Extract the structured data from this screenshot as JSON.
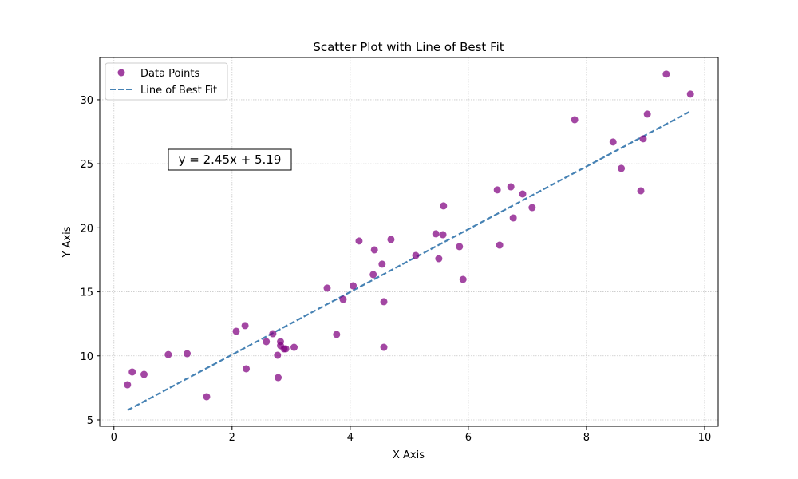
{
  "chart_data": {
    "type": "scatter",
    "title": "Scatter Plot with Line of Best Fit",
    "xlabel": "X Axis",
    "ylabel": "Y Axis",
    "xlim": [
      -0.24,
      10.23
    ],
    "ylim": [
      4.5,
      33.3
    ],
    "xticks": [
      0,
      2,
      4,
      6,
      8,
      10
    ],
    "yticks": [
      5,
      10,
      15,
      20,
      25,
      30
    ],
    "grid": true,
    "legend_position": "top-left",
    "annotation": "y = 2.45x + 5.19",
    "series": [
      {
        "name": "Data Points",
        "type": "scatter",
        "color": "#800080",
        "x": [
          0.23,
          0.31,
          0.51,
          0.92,
          1.24,
          1.57,
          2.07,
          2.22,
          2.24,
          2.58,
          2.69,
          2.77,
          2.78,
          2.82,
          2.82,
          2.88,
          2.91,
          3.05,
          3.61,
          3.77,
          3.88,
          4.05,
          4.15,
          4.39,
          4.41,
          4.54,
          4.57,
          4.57,
          4.69,
          5.11,
          5.45,
          5.5,
          5.57,
          5.58,
          5.85,
          5.91,
          6.49,
          6.53,
          6.72,
          6.76,
          6.92,
          7.08,
          7.8,
          8.45,
          8.59,
          8.92,
          8.96,
          9.03,
          9.35,
          9.76
        ],
        "y": [
          7.74,
          8.74,
          8.55,
          10.1,
          10.17,
          6.81,
          11.92,
          12.36,
          8.99,
          11.11,
          11.73,
          10.05,
          8.3,
          11.11,
          10.8,
          10.55,
          10.55,
          10.67,
          15.29,
          11.67,
          14.41,
          15.47,
          18.97,
          16.35,
          18.28,
          17.16,
          14.23,
          10.67,
          19.09,
          17.84,
          19.53,
          17.59,
          19.46,
          21.71,
          18.53,
          15.97,
          22.96,
          18.65,
          23.2,
          20.77,
          22.64,
          21.58,
          28.44,
          26.7,
          24.64,
          22.89,
          26.95,
          28.88,
          32.0,
          30.44
        ]
      },
      {
        "name": "Line of Best Fit",
        "type": "line",
        "style": "dashed",
        "color": "#4682b4",
        "slope": 2.45,
        "intercept": 5.19,
        "x": [
          0.23,
          9.76
        ]
      }
    ]
  }
}
